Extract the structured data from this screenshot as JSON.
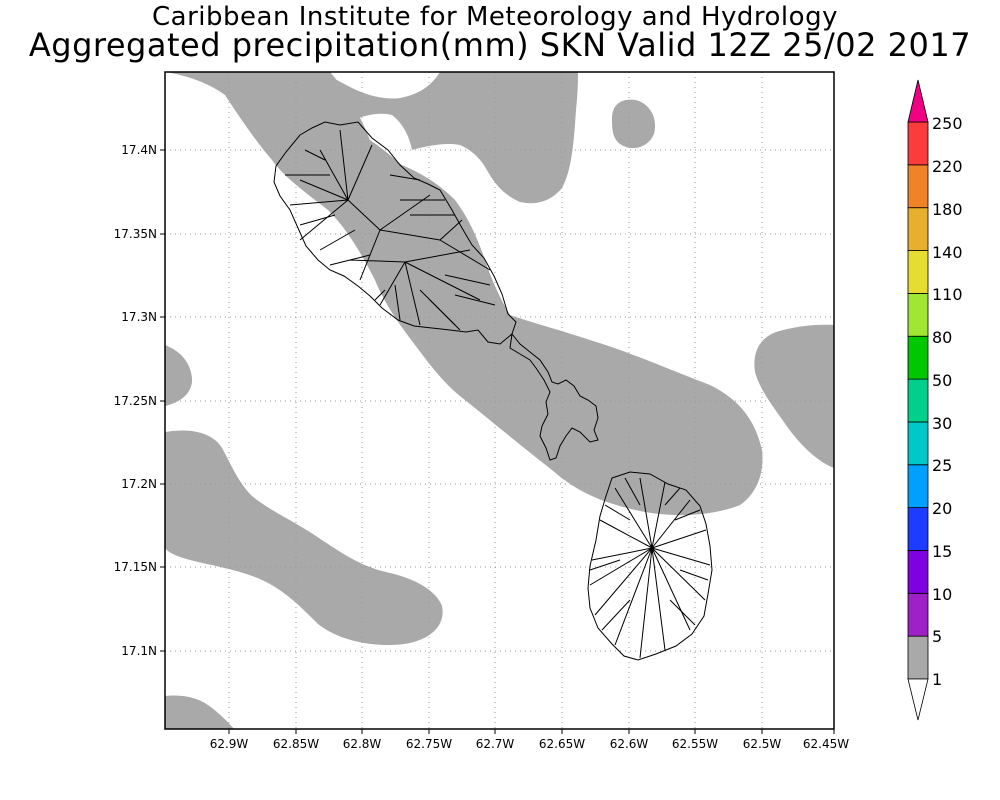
{
  "title": {
    "line1": "Caribbean Institute for Meteorology and Hydrology",
    "line2": "Aggregated precipitation(mm) SKN Valid 12Z 25/02 2017"
  },
  "map": {
    "lon_ticks": [
      "62.9W",
      "62.85W",
      "62.8W",
      "62.75W",
      "62.7W",
      "62.65W",
      "62.6W",
      "62.55W",
      "62.5W",
      "62.45W"
    ],
    "lat_ticks": [
      "17.4N",
      "17.35N",
      "17.3N",
      "17.25N",
      "17.2N",
      "17.15N",
      "17.1N"
    ],
    "grid": true,
    "rain_color": "#a9a9a9",
    "islands": [
      "St Kitts",
      "Nevis"
    ]
  },
  "colorbar": {
    "labels": [
      "1",
      "5",
      "10",
      "15",
      "20",
      "25",
      "30",
      "50",
      "80",
      "110",
      "140",
      "180",
      "220",
      "250"
    ],
    "colors": [
      "#ffffff",
      "#a9a9a9",
      "#a020c8",
      "#7f00e0",
      "#1e3cff",
      "#00a0ff",
      "#00c8c8",
      "#00d08c",
      "#00c800",
      "#a0e632",
      "#e6dc32",
      "#e6af2d",
      "#f08228",
      "#fa3c3c",
      "#f00082"
    ]
  }
}
